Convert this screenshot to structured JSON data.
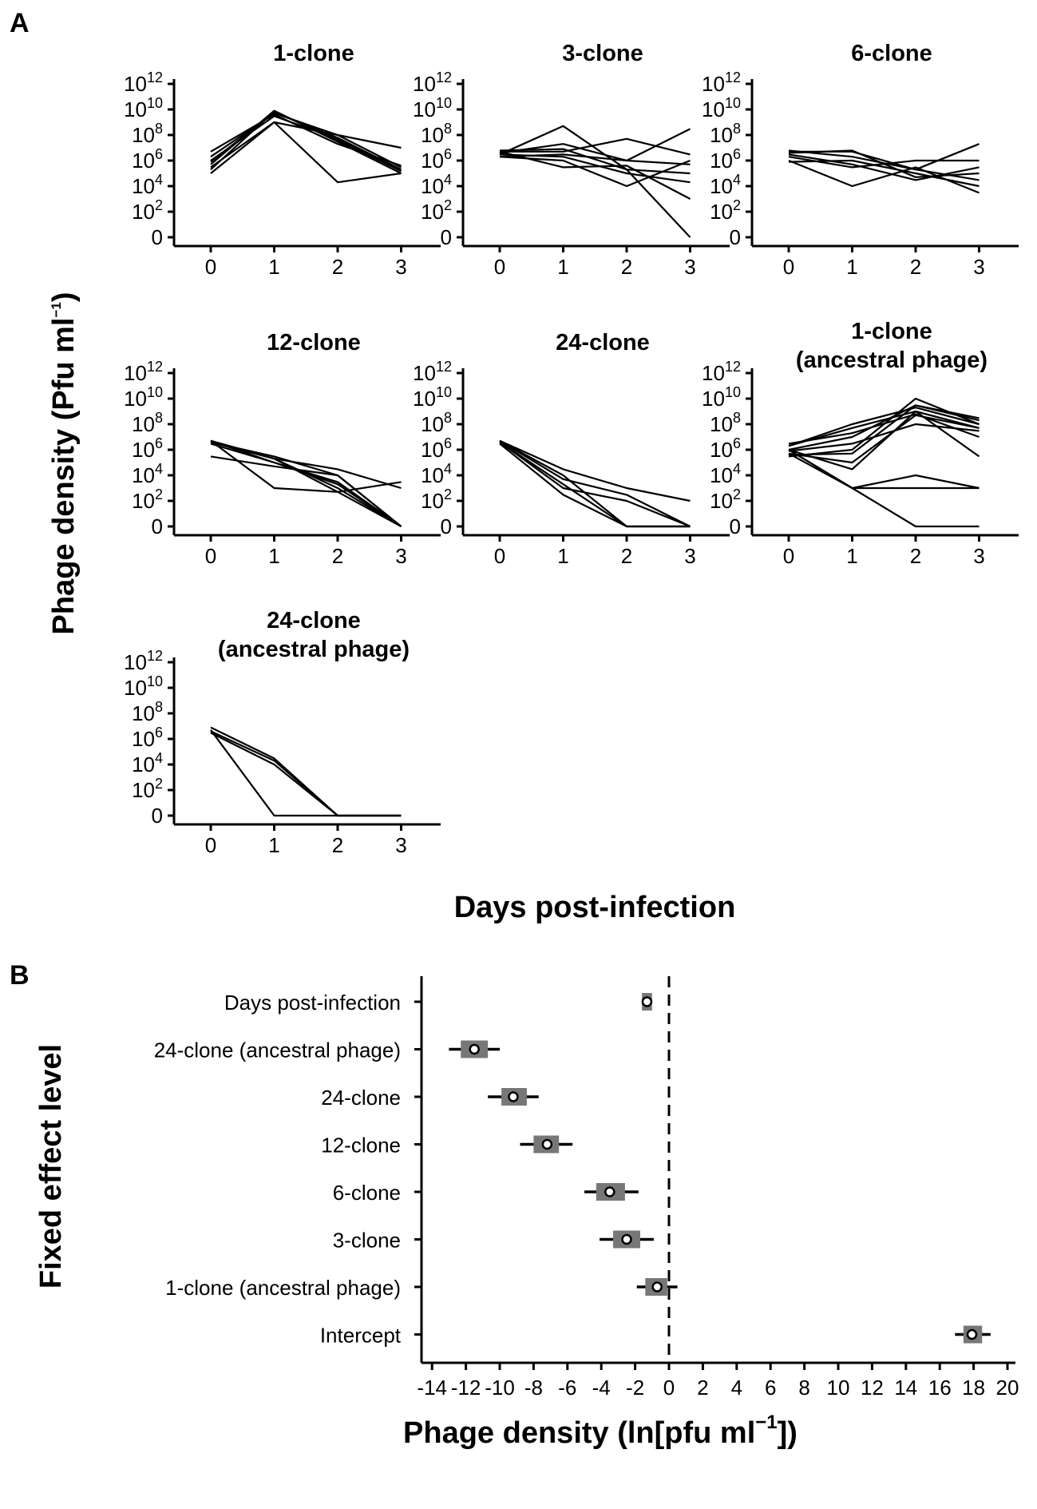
{
  "panel_a": {
    "letter": "A",
    "ylabel": "Phage density (Pfu ml",
    "ylabel_sup": "−1",
    "ylabel_close": ")",
    "xlabel": "Days post-infection",
    "x_ticks": [
      "0",
      "1",
      "2",
      "3"
    ],
    "y_ticks": [
      {
        "base": "0",
        "exp": ""
      },
      {
        "base": "10",
        "exp": "2"
      },
      {
        "base": "10",
        "exp": "4"
      },
      {
        "base": "10",
        "exp": "6"
      },
      {
        "base": "10",
        "exp": "8"
      },
      {
        "base": "10",
        "exp": "10"
      },
      {
        "base": "10",
        "exp": "12"
      }
    ]
  },
  "panel_b": {
    "letter": "B",
    "ylabel": "Fixed effect level",
    "xlabel": "Phage density (ln[pfu ml",
    "xlabel_sup": "−1",
    "xlabel_close": "])",
    "x_ticks": [
      "-14",
      "-12",
      "-10",
      "-8",
      "-6",
      "-4",
      "-2",
      "0",
      "2",
      "4",
      "6",
      "8",
      "10",
      "12",
      "14",
      "16",
      "18",
      "20"
    ]
  },
  "chart_data": [
    {
      "type": "line",
      "title": "1-clone",
      "x": [
        0,
        1,
        2,
        3
      ],
      "y_scale": "log10 (0 plotted at baseline)",
      "ylim": [
        0,
        1000000000000.0
      ],
      "series": [
        {
          "values": [
            1000000.0,
            3000000000.0,
            50000000.0,
            200000.0
          ]
        },
        {
          "values": [
            2000000.0,
            5000000000.0,
            100000000.0,
            300000.0
          ]
        },
        {
          "values": [
            500000.0,
            8000000000.0,
            30000000.0,
            100000.0
          ]
        },
        {
          "values": [
            100000.0,
            1000000000.0,
            20000.0,
            100000.0
          ]
        },
        {
          "values": [
            300000.0,
            1000000000.0,
            100000000.0,
            10000000.0
          ]
        },
        {
          "values": [
            5000000.0,
            4000000000.0,
            20000000.0,
            400000.0
          ]
        },
        {
          "values": [
            800000.0,
            6000000000.0,
            60000000.0,
            200000.0
          ]
        },
        {
          "values": [
            200000.0,
            7000000000.0,
            40000000.0,
            150000.0
          ]
        }
      ]
    },
    {
      "type": "line",
      "title": "3-clone",
      "x": [
        0,
        1,
        2,
        3
      ],
      "y_scale": "log10 (0 plotted at baseline)",
      "ylim": [
        0,
        1000000000000.0
      ],
      "series": [
        {
          "values": [
            3000000.0,
            500000000.0,
            200000.0,
            1
          ]
        },
        {
          "values": [
            5000000.0,
            5000000.0,
            50000000.0,
            3000000.0
          ]
        },
        {
          "values": [
            2000000.0,
            1000000.0,
            10000.0,
            1000000.0
          ]
        },
        {
          "values": [
            4000000.0,
            20000000.0,
            1000000.0,
            300000000.0
          ]
        },
        {
          "values": [
            6000000.0,
            8000000.0,
            200000.0,
            100000.0
          ]
        },
        {
          "values": [
            3000000.0,
            2000000.0,
            100000.0,
            20000.0
          ]
        },
        {
          "values": [
            2000000.0,
            3000000.0,
            1000000.0,
            500000.0
          ]
        },
        {
          "values": [
            5000000.0,
            300000.0,
            400000.0,
            1000.0
          ]
        }
      ]
    },
    {
      "type": "line",
      "title": "6-clone",
      "x": [
        0,
        1,
        2,
        3
      ],
      "y_scale": "log10 (0 plotted at baseline)",
      "ylim": [
        0,
        1000000000000.0
      ],
      "series": [
        {
          "values": [
            5000000.0,
            5000000.0,
            200000.0,
            20000000.0
          ]
        },
        {
          "values": [
            1000000.0,
            10000.0,
            300000.0,
            3000.0
          ]
        },
        {
          "values": [
            2000000.0,
            300000.0,
            1000000.0,
            1000000.0
          ]
        },
        {
          "values": [
            4000000.0,
            6000000.0,
            50000.0,
            100000.0
          ]
        },
        {
          "values": [
            800000.0,
            1000000.0,
            100000.0,
            10000.0
          ]
        },
        {
          "values": [
            3000000.0,
            500000.0,
            30000.0,
            300000.0
          ]
        },
        {
          "values": [
            6000000.0,
            2000000.0,
            200000.0,
            30000.0
          ]
        }
      ]
    },
    {
      "type": "line",
      "title": "12-clone",
      "x": [
        0,
        1,
        2,
        3
      ],
      "y_scale": "log10 (0 plotted at baseline)",
      "ylim": [
        0,
        1000000000000.0
      ],
      "series": [
        {
          "values": [
            5000000.0,
            1000.0,
            500.0,
            3000.0
          ]
        },
        {
          "values": [
            300000.0,
            50000.0,
            10000.0,
            1
          ]
        },
        {
          "values": [
            4000000.0,
            200000.0,
            30000.0,
            1000.0
          ]
        },
        {
          "values": [
            5000000.0,
            100000.0,
            3000.0,
            1
          ]
        },
        {
          "values": [
            4000000.0,
            300000.0,
            10000.0,
            1
          ]
        },
        {
          "values": [
            5000000.0,
            200000.0,
            500.0,
            1
          ]
        },
        {
          "values": [
            3000000.0,
            100000.0,
            2000.0,
            1
          ]
        },
        {
          "values": [
            5000000.0,
            200000.0,
            1000.0,
            1
          ]
        }
      ]
    },
    {
      "type": "line",
      "title": "24-clone",
      "x": [
        0,
        1,
        2,
        3
      ],
      "y_scale": "log10 (0 plotted at baseline)",
      "ylim": [
        0,
        1000000000000.0
      ],
      "series": [
        {
          "values": [
            5000000.0,
            30000.0,
            1000.0,
            100.0
          ]
        },
        {
          "values": [
            4000000.0,
            2000.0,
            1,
            1
          ]
        },
        {
          "values": [
            5000000.0,
            5000.0,
            300.0,
            1
          ]
        },
        {
          "values": [
            3000000.0,
            300.0,
            1,
            1
          ]
        },
        {
          "values": [
            5000000.0,
            10000.0,
            1,
            1
          ]
        },
        {
          "values": [
            4000000.0,
            1000.0,
            100.0,
            1
          ]
        }
      ]
    },
    {
      "type": "line",
      "title": "1-clone\n(ancestral phage)",
      "x": [
        0,
        1,
        2,
        3
      ],
      "y_scale": "log10 (0 plotted at baseline)",
      "ylim": [
        0,
        1000000000000.0
      ],
      "series": [
        {
          "values": [
            1000000.0,
            1000.0,
            1,
            1
          ]
        },
        {
          "values": [
            500000.0,
            1000.0,
            10000.0,
            1000.0
          ]
        },
        {
          "values": [
            1000000.0,
            1000.0,
            1000.0,
            1000.0
          ]
        },
        {
          "values": [
            2000000.0,
            50000000.0,
            1000000000.0,
            50000000.0
          ]
        },
        {
          "values": [
            1000000.0,
            10000000.0,
            3000000000.0,
            300000000.0
          ]
        },
        {
          "values": [
            300000.0,
            1000000.0,
            10000000000.0,
            100000000.0
          ]
        },
        {
          "values": [
            500000.0,
            100000.0,
            500000000.0,
            50000000.0
          ]
        },
        {
          "values": [
            2000000.0,
            100000000.0,
            2000000000.0,
            100000000.0
          ]
        },
        {
          "values": [
            1000000.0,
            30000.0,
            1000000000.0,
            300000.0
          ]
        },
        {
          "values": [
            400000.0,
            500000.0,
            3000000000.0,
            200000000.0
          ]
        },
        {
          "values": [
            3000000.0,
            20000000.0,
            600000000.0,
            10000000.0
          ]
        },
        {
          "values": [
            800000.0,
            3000000.0,
            100000000.0,
            30000000.0
          ]
        }
      ]
    },
    {
      "type": "line",
      "title": "24-clone\n(ancestral phage)",
      "x": [
        0,
        1,
        2,
        3
      ],
      "y_scale": "log10 (0 plotted at baseline)",
      "ylim": [
        0,
        1000000000000.0
      ],
      "series": [
        {
          "values": [
            5000000.0,
            1,
            1,
            1
          ]
        },
        {
          "values": [
            3000000.0,
            10000.0,
            1,
            1
          ]
        },
        {
          "values": [
            8000000.0,
            30000.0,
            1,
            1
          ]
        },
        {
          "values": [
            4000000.0,
            20000.0,
            1,
            1
          ]
        }
      ]
    },
    {
      "type": "scatter",
      "title": "",
      "xlabel": "Phage density (ln[pfu ml−1])",
      "ylabel": "Fixed effect level",
      "xlim": [
        -15,
        21
      ],
      "reference_line_x": 0,
      "categories": [
        "Days post-infection",
        "24-clone (ancestral phage)",
        "24-clone",
        "12-clone",
        "6-clone",
        "3-clone",
        "1-clone (ancestral phage)",
        "Intercept"
      ],
      "estimates": [
        {
          "label": "Days post-infection",
          "mean": -1.3,
          "inner": [
            -1.6,
            -1.0
          ],
          "outer": [
            -1.6,
            -1.0
          ]
        },
        {
          "label": "24-clone (ancestral phage)",
          "mean": -11.5,
          "inner": [
            -12.3,
            -10.7
          ],
          "outer": [
            -13.0,
            -10.0
          ]
        },
        {
          "label": "24-clone",
          "mean": -9.2,
          "inner": [
            -9.9,
            -8.4
          ],
          "outer": [
            -10.7,
            -7.7
          ]
        },
        {
          "label": "12-clone",
          "mean": -7.2,
          "inner": [
            -8.0,
            -6.5
          ],
          "outer": [
            -8.8,
            -5.7
          ]
        },
        {
          "label": "6-clone",
          "mean": -3.5,
          "inner": [
            -4.3,
            -2.6
          ],
          "outer": [
            -5.0,
            -1.8
          ]
        },
        {
          "label": "3-clone",
          "mean": -2.5,
          "inner": [
            -3.3,
            -1.7
          ],
          "outer": [
            -4.1,
            -0.9
          ]
        },
        {
          "label": "1-clone (ancestral phage)",
          "mean": -0.7,
          "inner": [
            -1.4,
            -0.1
          ],
          "outer": [
            -1.9,
            0.5
          ]
        },
        {
          "label": "Intercept",
          "mean": 17.9,
          "inner": [
            17.4,
            18.5
          ],
          "outer": [
            16.9,
            19.0
          ]
        }
      ]
    }
  ]
}
